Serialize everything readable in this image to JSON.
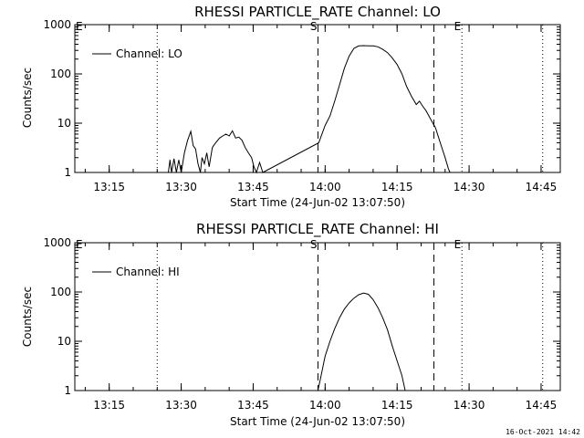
{
  "colors": {
    "background": "#ffffff",
    "foreground": "#000000"
  },
  "footer_timestamp": "16-Oct-2021 14:42",
  "chart_data": [
    {
      "type": "line",
      "title": "RHESSI PARTICLE_RATE Channel: LO",
      "xlabel": "Start Time (24-Jun-02 13:07:50)",
      "ylabel": "Counts/sec",
      "yscale": "log",
      "ylim": [
        1,
        1000
      ],
      "xlim": [
        "13:07:50",
        "14:49:00"
      ],
      "x_ticks": [
        "13:15",
        "13:30",
        "13:45",
        "14:00",
        "14:15",
        "14:30",
        "14:45"
      ],
      "y_ticks": [
        "1",
        "10",
        "100",
        "1000"
      ],
      "legend": "top-left",
      "series": [
        {
          "name": "Channel: LO",
          "points": [
            [
              "13:27:20",
              1
            ],
            [
              "13:27:40",
              1.8
            ],
            [
              "13:28:00",
              1
            ],
            [
              "13:28:30",
              1.9
            ],
            [
              "13:29:00",
              1
            ],
            [
              "13:29:30",
              1.8
            ],
            [
              "13:30:00",
              1
            ],
            [
              "13:30:40",
              2.5
            ],
            [
              "13:31:20",
              4.5
            ],
            [
              "13:32:00",
              6.8
            ],
            [
              "13:32:30",
              3.5
            ],
            [
              "13:33:00",
              3.0
            ],
            [
              "13:33:30",
              1.5
            ],
            [
              "13:34:00",
              1
            ],
            [
              "13:34:20",
              2.0
            ],
            [
              "13:34:50",
              1.5
            ],
            [
              "13:35:20",
              2.5
            ],
            [
              "13:35:50",
              1.3
            ],
            [
              "13:36:30",
              3.2
            ],
            [
              "13:37:00",
              3.8
            ],
            [
              "13:38:00",
              5.0
            ],
            [
              "13:38:40",
              5.5
            ],
            [
              "13:39:20",
              6.0
            ],
            [
              "13:40:00",
              5.5
            ],
            [
              "13:40:40",
              7.0
            ],
            [
              "13:41:20",
              5.0
            ],
            [
              "13:42:00",
              5.2
            ],
            [
              "13:42:40",
              4.5
            ],
            [
              "13:43:20",
              3.2
            ],
            [
              "13:44:00",
              2.5
            ],
            [
              "13:44:40",
              2.0
            ],
            [
              "13:45:10",
              1.3
            ],
            [
              "13:45:40",
              1
            ],
            [
              "13:46:20",
              1.6
            ],
            [
              "13:47:00",
              1
            ],
            [
              "13:58:40",
              4
            ],
            [
              "14:00:00",
              9
            ],
            [
              "14:01:00",
              14
            ],
            [
              "14:02:00",
              28
            ],
            [
              "14:03:00",
              60
            ],
            [
              "14:04:00",
              130
            ],
            [
              "14:05:00",
              230
            ],
            [
              "14:06:00",
              330
            ],
            [
              "14:07:00",
              370
            ],
            [
              "14:08:00",
              375
            ],
            [
              "14:09:00",
              370
            ],
            [
              "14:10:00",
              372
            ],
            [
              "14:11:00",
              355
            ],
            [
              "14:12:00",
              315
            ],
            [
              "14:13:00",
              270
            ],
            [
              "14:14:00",
              210
            ],
            [
              "14:15:00",
              155
            ],
            [
              "14:16:00",
              100
            ],
            [
              "14:17:00",
              55
            ],
            [
              "14:18:00",
              35
            ],
            [
              "14:19:00",
              24
            ],
            [
              "14:19:40",
              28
            ],
            [
              "14:20:20",
              22
            ],
            [
              "14:21:00",
              18
            ],
            [
              "14:22:00",
              12
            ],
            [
              "14:23:00",
              8
            ],
            [
              "14:24:00",
              4
            ],
            [
              "14:25:00",
              2
            ],
            [
              "14:25:40",
              1.2
            ],
            [
              "14:26:00",
              1
            ]
          ]
        }
      ],
      "markers": [
        {
          "label": "S",
          "time": "13:58:30",
          "style": "dashed"
        },
        {
          "label": "",
          "time": "14:22:40",
          "style": "dashed"
        },
        {
          "label": "E",
          "time": "14:28:30",
          "style": "dotted"
        },
        {
          "label": "",
          "time": "13:25:00",
          "style": "dotted"
        },
        {
          "label": "",
          "time": "14:45:20",
          "style": "dotted"
        }
      ],
      "top_left_marker": "E"
    },
    {
      "type": "line",
      "title": "RHESSI PARTICLE_RATE Channel: HI",
      "xlabel": "Start Time (24-Jun-02 13:07:50)",
      "ylabel": "Counts/sec",
      "yscale": "log",
      "ylim": [
        1,
        1000
      ],
      "xlim": [
        "13:07:50",
        "14:49:00"
      ],
      "x_ticks": [
        "13:15",
        "13:30",
        "13:45",
        "14:00",
        "14:15",
        "14:30",
        "14:45"
      ],
      "y_ticks": [
        "1",
        "10",
        "100",
        "1000"
      ],
      "legend": "top-left",
      "series": [
        {
          "name": "Channel: HI",
          "points": [
            [
              "13:58:30",
              1
            ],
            [
              "13:59:10",
              2
            ],
            [
              "14:00:00",
              5
            ],
            [
              "14:01:00",
              10
            ],
            [
              "14:02:00",
              18
            ],
            [
              "14:03:00",
              30
            ],
            [
              "14:04:00",
              45
            ],
            [
              "14:05:00",
              60
            ],
            [
              "14:06:00",
              75
            ],
            [
              "14:07:00",
              88
            ],
            [
              "14:08:00",
              95
            ],
            [
              "14:09:00",
              90
            ],
            [
              "14:10:00",
              70
            ],
            [
              "14:11:00",
              48
            ],
            [
              "14:12:00",
              30
            ],
            [
              "14:13:00",
              17
            ],
            [
              "14:14:00",
              8
            ],
            [
              "14:15:00",
              4
            ],
            [
              "14:16:00",
              2
            ],
            [
              "14:16:40",
              1
            ]
          ]
        }
      ],
      "markers": [
        {
          "label": "S",
          "time": "13:58:30",
          "style": "dashed"
        },
        {
          "label": "",
          "time": "14:22:40",
          "style": "dashed"
        },
        {
          "label": "E",
          "time": "14:28:30",
          "style": "dotted"
        },
        {
          "label": "",
          "time": "13:25:00",
          "style": "dotted"
        },
        {
          "label": "",
          "time": "14:45:20",
          "style": "dotted"
        }
      ],
      "top_left_marker": "E"
    }
  ]
}
